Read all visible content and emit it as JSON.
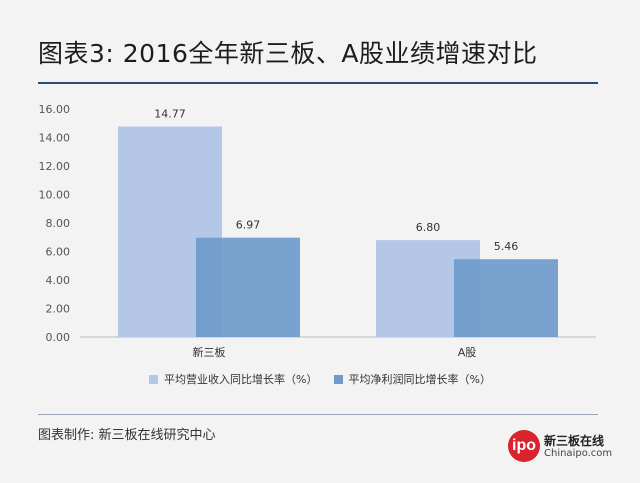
{
  "title": "图表3: 2016全年新三板、A股业绩增速对比",
  "source": "图表制作: 新三板在线研究中心",
  "logo": {
    "badge": "ipo",
    "name_cn": "新三板在线",
    "name_en": "Chinaipo.com"
  },
  "colors": {
    "series1": "#b4c7e7",
    "series2": "#6f9bcb",
    "title_rule": "#2c4a7a"
  },
  "chart_data": {
    "type": "bar",
    "title": "",
    "xlabel": "",
    "ylabel": "",
    "categories": [
      "新三板",
      "A股"
    ],
    "series": [
      {
        "name": "平均营业收入同比增长率（%）",
        "values": [
          14.77,
          6.8
        ],
        "labels": [
          "14.77",
          "6.80"
        ]
      },
      {
        "name": "平均净利润同比增长率（%）",
        "values": [
          6.97,
          5.46
        ],
        "labels": [
          "6.97",
          "5.46"
        ]
      }
    ],
    "ylim": [
      0,
      16
    ],
    "yticks": [
      "0.00",
      "2.00",
      "4.00",
      "6.00",
      "8.00",
      "10.00",
      "12.00",
      "14.00",
      "16.00"
    ],
    "grid": false,
    "legend_position": "bottom"
  }
}
